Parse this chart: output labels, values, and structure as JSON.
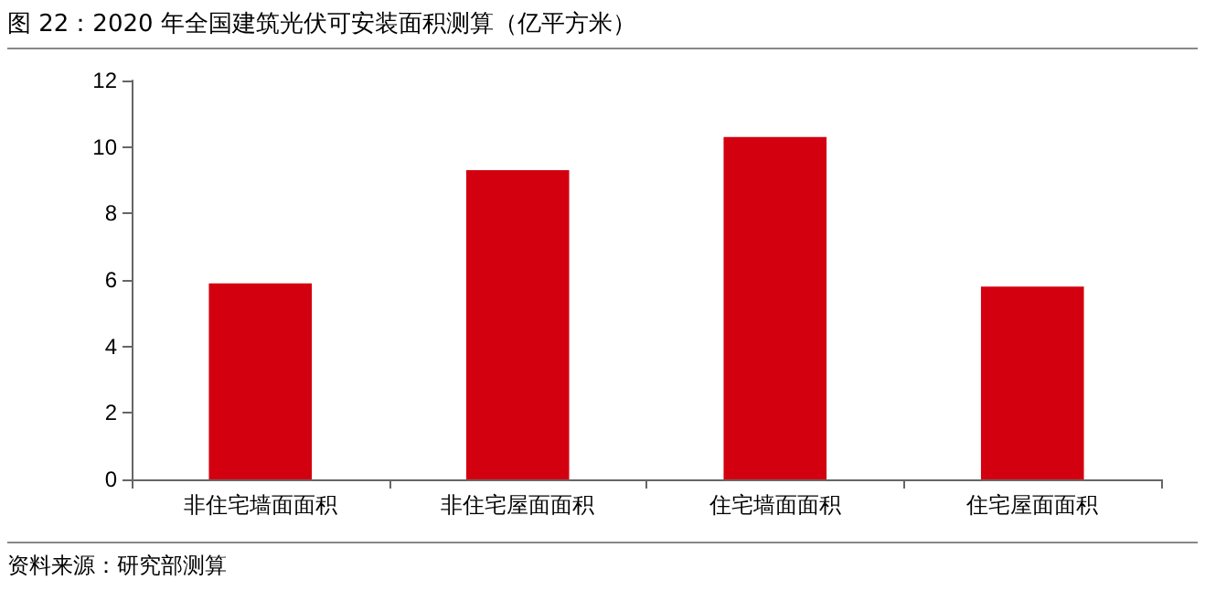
{
  "chart_data": {
    "type": "bar",
    "title": "图 22：2020 年全国建筑光伏可安装面积测算（亿平方米）",
    "categories": [
      "非住宅墙面面积",
      "非住宅屋面面积",
      "住宅墙面面积",
      "住宅屋面面积"
    ],
    "values": [
      5.9,
      9.3,
      10.3,
      5.8
    ],
    "color": "#d3000f",
    "ylim": [
      0,
      12
    ],
    "yticks": [
      0,
      2,
      4,
      6,
      8,
      10,
      12
    ],
    "grid": false,
    "annotations": [
      "资料来源：研究部测算"
    ]
  }
}
